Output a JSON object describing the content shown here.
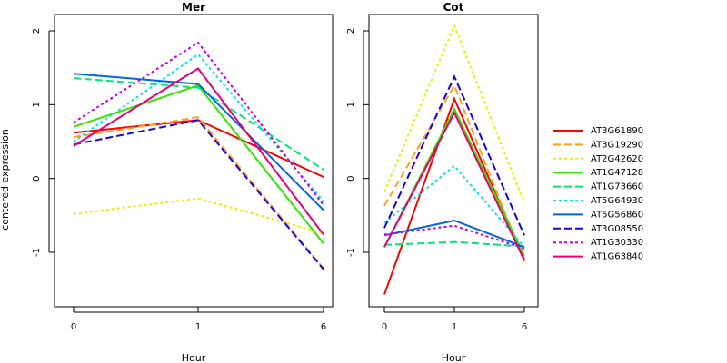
{
  "chart_data": [
    {
      "type": "line",
      "title": "Mer",
      "xlabel": "Hour",
      "ylabel": "centered expression",
      "categories": [
        "0",
        "1",
        "6"
      ],
      "ylim": [
        -1.7,
        2.2
      ],
      "yticks": [
        "-1",
        "0",
        "1",
        "2"
      ],
      "series": [
        {
          "name": "AT3G61890",
          "values": [
            0.62,
            0.79,
            0.02
          ]
        },
        {
          "name": "AT3G19290",
          "values": [
            0.56,
            0.83,
            -1.22
          ]
        },
        {
          "name": "AT2G42620",
          "values": [
            -0.48,
            -0.27,
            -0.74
          ]
        },
        {
          "name": "AT1G47128",
          "values": [
            0.7,
            1.26,
            -0.88
          ]
        },
        {
          "name": "AT1G73660",
          "values": [
            1.36,
            1.23,
            0.12
          ]
        },
        {
          "name": "AT5G64930",
          "values": [
            0.5,
            1.68,
            -0.31
          ]
        },
        {
          "name": "AT5G56860",
          "values": [
            1.42,
            1.28,
            -0.43
          ]
        },
        {
          "name": "AT3G08550",
          "values": [
            0.46,
            0.79,
            -1.23
          ]
        },
        {
          "name": "AT1G30330",
          "values": [
            0.76,
            1.84,
            -0.36
          ]
        },
        {
          "name": "AT1G63840",
          "values": [
            0.44,
            1.49,
            -0.76
          ]
        }
      ]
    },
    {
      "type": "line",
      "title": "Cot",
      "xlabel": "Hour",
      "ylabel": "",
      "categories": [
        "0",
        "1",
        "6"
      ],
      "ylim": [
        -1.7,
        2.2
      ],
      "yticks": [
        "-1",
        "0",
        "1",
        "2"
      ],
      "series": [
        {
          "name": "AT3G61890",
          "values": [
            -1.57,
            1.08,
            -1.1
          ]
        },
        {
          "name": "AT3G19290",
          "values": [
            -0.37,
            1.26,
            -1.13
          ]
        },
        {
          "name": "AT2G42620",
          "values": [
            -0.18,
            2.07,
            -0.33
          ]
        },
        {
          "name": "AT1G47128",
          "values": [
            -0.93,
            0.94,
            -1.05
          ]
        },
        {
          "name": "AT1G73660",
          "values": [
            -0.9,
            -0.86,
            -0.92
          ]
        },
        {
          "name": "AT5G64930",
          "values": [
            -0.6,
            0.17,
            -0.93
          ]
        },
        {
          "name": "AT5G56860",
          "values": [
            -0.77,
            -0.57,
            -0.93
          ]
        },
        {
          "name": "AT3G08550",
          "values": [
            -0.67,
            1.38,
            -0.77
          ]
        },
        {
          "name": "AT1G30330",
          "values": [
            -0.76,
            -0.64,
            -0.95
          ]
        },
        {
          "name": "AT1G63840",
          "values": [
            -0.93,
            0.89,
            -1.11
          ]
        }
      ]
    }
  ],
  "legend": {
    "placement": "right",
    "items": [
      {
        "name": "AT3G61890",
        "color": "#ff0000",
        "dash": "solid"
      },
      {
        "name": "AT3G19290",
        "color": "#ff9f1a",
        "dash": "dashed"
      },
      {
        "name": "AT2G42620",
        "color": "#e6f000",
        "dash": "dotted"
      },
      {
        "name": "AT1G47128",
        "color": "#33e600",
        "dash": "solid"
      },
      {
        "name": "AT1G73660",
        "color": "#00e673",
        "dash": "dashed"
      },
      {
        "name": "AT5G64930",
        "color": "#00e6e6",
        "dash": "dotted"
      },
      {
        "name": "AT5G56860",
        "color": "#0066e6",
        "dash": "solid"
      },
      {
        "name": "AT3G08550",
        "color": "#1a00e6",
        "dash": "dashed"
      },
      {
        "name": "AT1G30330",
        "color": "#c000e6",
        "dash": "dotted"
      },
      {
        "name": "AT1G63840",
        "color": "#e6007a",
        "dash": "solid"
      }
    ]
  }
}
